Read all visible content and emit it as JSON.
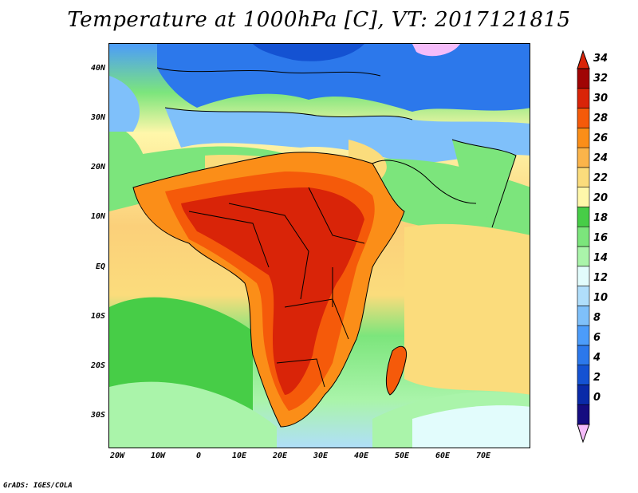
{
  "title": "Temperature at 1000hPa [C], VT: 2017121815",
  "credit": "GrADS: IGES/COLA",
  "y_axis": {
    "labels": [
      "40N",
      "30N",
      "20N",
      "10N",
      "EQ",
      "10S",
      "20S",
      "30S"
    ]
  },
  "x_axis": {
    "labels": [
      "20W",
      "10W",
      "0",
      "10E",
      "20E",
      "30E",
      "40E",
      "50E",
      "60E",
      "70E"
    ]
  },
  "colorbar": {
    "levels": [
      "34",
      "32",
      "30",
      "28",
      "26",
      "24",
      "22",
      "20",
      "18",
      "16",
      "14",
      "12",
      "10",
      "8",
      "6",
      "4",
      "2",
      "0"
    ],
    "colors": [
      "#f5bcfa",
      "#150c80",
      "#0a2aa8",
      "#1452d2",
      "#2c78eb",
      "#4c9cfa",
      "#7fc0fa",
      "#b0defb",
      "#e2fcfc",
      "#aaf4aa",
      "#7ce57c",
      "#47cd47",
      "#fff7aa",
      "#fbdc7c",
      "#fbb44a",
      "#fb8e18",
      "#f55a0a",
      "#d92408",
      "#a00404"
    ]
  },
  "legend_colors": {
    "ocean_warm": "#fbd07a",
    "land_hot": "#d92408",
    "cold_north": "#2c78eb",
    "border": "#000000"
  }
}
